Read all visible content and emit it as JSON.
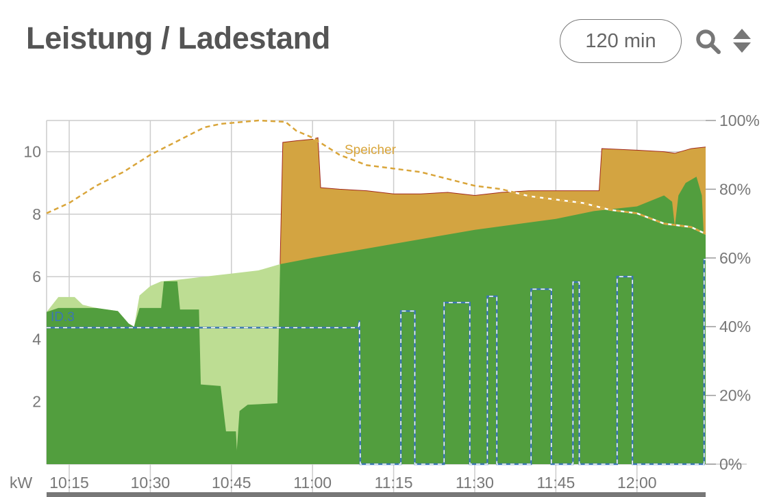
{
  "header": {
    "title": "Leistung / Ladestand",
    "range_label": "120 min",
    "zoom_icon": "search-icon",
    "reorder_icon": "sort-updown-icon"
  },
  "chart_data": {
    "type": "area",
    "x_range": [
      "10:10:49",
      "12:12:42"
    ],
    "x_ticks": [
      "10:15",
      "10:30",
      "10:45",
      "11:00",
      "11:15",
      "11:30",
      "11:45",
      "12:00"
    ],
    "y_left": {
      "label": "kW",
      "range": [
        0,
        11
      ],
      "ticks": [
        2,
        4,
        6,
        8,
        10
      ]
    },
    "y_right": {
      "range": [
        0,
        100
      ],
      "ticks": [
        "0%",
        "20%",
        "40%",
        "60%",
        "80%",
        "100%"
      ],
      "tick_values": [
        0,
        20,
        40,
        60,
        80,
        100
      ]
    },
    "grid": true,
    "colors": {
      "dark_green": "#529e3e",
      "light_green": "#bddd93",
      "gold": "#d3a441",
      "spike_red": "#a0281c",
      "soc_line": "#d9a53a",
      "id3_line": "#3b76b5",
      "grid": "#cccccc"
    },
    "series": [
      {
        "key": "gold_total",
        "axis": "left",
        "points": [
          [
            "10:54:00",
            6.4
          ],
          [
            "10:54:30",
            10.3
          ],
          [
            "10:57:00",
            10.35
          ],
          [
            "11:00:00",
            10.4
          ],
          [
            "11:01:00",
            10.45
          ],
          [
            "11:01:30",
            8.85
          ],
          [
            "11:05:00",
            8.8
          ],
          [
            "11:10:00",
            8.75
          ],
          [
            "11:15:00",
            8.65
          ],
          [
            "11:20:00",
            8.65
          ],
          [
            "11:25:00",
            8.7
          ],
          [
            "11:30:00",
            8.6
          ],
          [
            "11:35:00",
            8.7
          ],
          [
            "11:40:00",
            8.75
          ],
          [
            "11:45:00",
            8.75
          ],
          [
            "11:53:00",
            8.75
          ],
          [
            "11:53:30",
            10.1
          ],
          [
            "12:00:00",
            10.05
          ],
          [
            "12:05:00",
            10.0
          ],
          [
            "12:07:00",
            9.95
          ],
          [
            "12:10:00",
            10.1
          ],
          [
            "12:12:42",
            10.15
          ]
        ]
      },
      {
        "key": "light_green_total",
        "axis": "left",
        "points": [
          [
            "10:10:49",
            4.87
          ],
          [
            "10:13:00",
            5.35
          ],
          [
            "10:16:00",
            5.35
          ],
          [
            "10:17:30",
            5.1
          ],
          [
            "10:20:00",
            5.0
          ],
          [
            "10:24:00",
            4.9
          ],
          [
            "10:26:00",
            4.5
          ],
          [
            "10:27:00",
            4.4
          ],
          [
            "10:28:00",
            5.4
          ],
          [
            "10:30:00",
            5.7
          ],
          [
            "10:32:00",
            5.85
          ],
          [
            "10:35:00",
            5.9
          ],
          [
            "10:40:00",
            6.0
          ],
          [
            "10:45:00",
            6.1
          ],
          [
            "10:50:00",
            6.2
          ],
          [
            "10:54:00",
            6.4
          ]
        ]
      },
      {
        "key": "dark_green",
        "axis": "left",
        "points": [
          [
            "10:10:49",
            4.87
          ],
          [
            "10:13:00",
            5.0
          ],
          [
            "10:20:00",
            5.0
          ],
          [
            "10:24:00",
            4.9
          ],
          [
            "10:26:00",
            4.5
          ],
          [
            "10:27:00",
            4.4
          ],
          [
            "10:28:00",
            5.0
          ],
          [
            "10:32:00",
            5.0
          ],
          [
            "10:32:30",
            5.85
          ],
          [
            "10:35:00",
            5.85
          ],
          [
            "10:35:30",
            4.95
          ],
          [
            "10:39:00",
            4.95
          ],
          [
            "10:39:20",
            2.55
          ],
          [
            "10:43:00",
            2.5
          ],
          [
            "10:44:00",
            1.05
          ],
          [
            "10:45:50",
            1.05
          ],
          [
            "10:46:00",
            0.45
          ],
          [
            "10:46:30",
            1.7
          ],
          [
            "10:48:00",
            1.9
          ],
          [
            "10:53:30",
            1.95
          ],
          [
            "10:54:00",
            6.4
          ],
          [
            "11:00:00",
            6.6
          ],
          [
            "11:15:00",
            7.05
          ],
          [
            "11:30:00",
            7.5
          ],
          [
            "11:45:00",
            7.85
          ],
          [
            "11:52:00",
            8.1
          ],
          [
            "12:00:00",
            8.25
          ],
          [
            "12:05:00",
            8.6
          ],
          [
            "12:06:30",
            8.4
          ],
          [
            "12:07:00",
            7.6
          ],
          [
            "12:07:40",
            8.6
          ],
          [
            "12:09:00",
            9.0
          ],
          [
            "12:11:00",
            9.2
          ],
          [
            "12:12:00",
            8.6
          ],
          [
            "12:12:20",
            7.4
          ],
          [
            "12:12:42",
            7.4
          ]
        ]
      },
      {
        "key": "speicher_soc",
        "name": "Speicher",
        "axis": "right",
        "style": "dashed",
        "points": [
          [
            "10:10:49",
            73
          ],
          [
            "10:15:00",
            76
          ],
          [
            "10:20:00",
            81
          ],
          [
            "10:25:00",
            85
          ],
          [
            "10:30:00",
            90
          ],
          [
            "10:35:00",
            94
          ],
          [
            "10:40:00",
            98
          ],
          [
            "10:43:00",
            99
          ],
          [
            "10:50:00",
            100
          ],
          [
            "10:55:00",
            99.6
          ],
          [
            "10:57:00",
            97
          ],
          [
            "11:00:00",
            95
          ],
          [
            "11:05:00",
            90
          ],
          [
            "11:10:00",
            87
          ],
          [
            "11:15:00",
            86
          ],
          [
            "11:20:00",
            85
          ],
          [
            "11:25:00",
            83
          ],
          [
            "11:30:00",
            81
          ],
          [
            "11:35:00",
            80
          ],
          [
            "11:40:00",
            78
          ],
          [
            "11:45:00",
            77
          ],
          [
            "11:50:00",
            76
          ],
          [
            "11:55:00",
            74
          ],
          [
            "12:00:00",
            73
          ],
          [
            "12:05:00",
            70
          ],
          [
            "12:10:00",
            69
          ],
          [
            "12:12:42",
            67
          ]
        ]
      },
      {
        "key": "id3_charging",
        "name": "ID.3",
        "axis": "left",
        "style": "step-dashed",
        "points": [
          [
            "10:10:49",
            4.37
          ],
          [
            "11:08:30",
            4.37
          ],
          [
            "11:08:40",
            4.6
          ],
          [
            "11:08:50",
            0
          ],
          [
            "11:16:20",
            0
          ],
          [
            "11:16:20",
            4.9
          ],
          [
            "11:18:55",
            4.9
          ],
          [
            "11:18:55",
            0
          ],
          [
            "11:24:20",
            0
          ],
          [
            "11:24:20",
            5.17
          ],
          [
            "11:29:05",
            5.17
          ],
          [
            "11:29:05",
            0
          ],
          [
            "11:32:20",
            0
          ],
          [
            "11:32:20",
            5.37
          ],
          [
            "11:34:05",
            5.37
          ],
          [
            "11:34:05",
            0
          ],
          [
            "11:40:25",
            0
          ],
          [
            "11:40:25",
            5.6
          ],
          [
            "11:44:10",
            5.6
          ],
          [
            "11:44:10",
            0
          ],
          [
            "11:48:10",
            0
          ],
          [
            "11:48:10",
            5.83
          ],
          [
            "11:49:20",
            5.83
          ],
          [
            "11:49:20",
            0
          ],
          [
            "11:56:20",
            0
          ],
          [
            "11:56:20",
            6.0
          ],
          [
            "11:59:10",
            6.0
          ],
          [
            "11:59:10",
            0
          ],
          [
            "12:12:25",
            0
          ],
          [
            "12:12:25",
            6.55
          ],
          [
            "12:12:42",
            6.55
          ]
        ]
      }
    ],
    "annotations": [
      {
        "text": "Speicher",
        "series": "speicher_soc"
      },
      {
        "text": "ID.3",
        "series": "id3_charging"
      }
    ]
  }
}
